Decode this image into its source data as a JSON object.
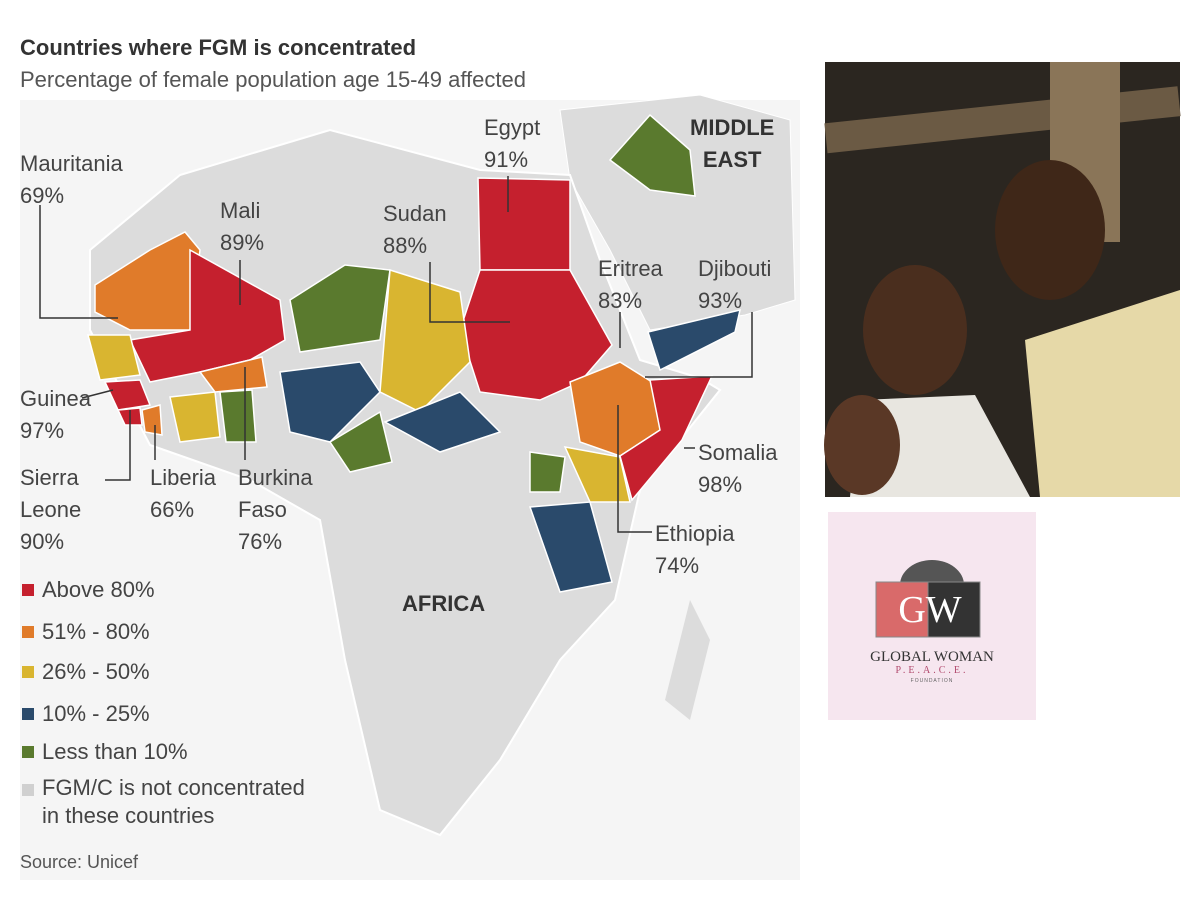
{
  "header": {
    "title": "Countries where FGM is concentrated",
    "subtitle": "Percentage of female population age 15-49 affected"
  },
  "regions": {
    "middle_east": "MIDDLE\nEAST",
    "africa": "AFRICA"
  },
  "countries": [
    {
      "name": "Mauritania",
      "value": "69%"
    },
    {
      "name": "Mali",
      "value": "89%"
    },
    {
      "name": "Sudan",
      "value": "88%"
    },
    {
      "name": "Egypt",
      "value": "91%"
    },
    {
      "name": "Eritrea",
      "value": "83%"
    },
    {
      "name": "Djibouti",
      "value": "93%"
    },
    {
      "name": "Guinea",
      "value": "97%"
    },
    {
      "name": "Sierra\nLeone",
      "value": "90%"
    },
    {
      "name": "Liberia",
      "value": "66%"
    },
    {
      "name": "Burkina\nFaso",
      "value": "76%"
    },
    {
      "name": "Somalia",
      "value": "98%"
    },
    {
      "name": "Ethiopia",
      "value": "74%"
    }
  ],
  "legend": [
    "Above 80%",
    "51% - 80%",
    "26% - 50%",
    "10% - 25%",
    "Less than 10%",
    "FGM/C is not concentrated\nin these countries"
  ],
  "source": "Source: Unicef",
  "logo": {
    "mark": "GW",
    "name": "GLOBAL WOMAN",
    "tagline": "P.E.A.C.E.",
    "sub": "FOUNDATION"
  }
}
